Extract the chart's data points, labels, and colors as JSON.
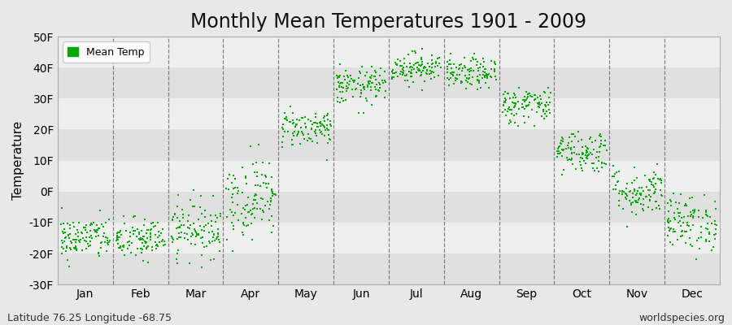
{
  "title": "Monthly Mean Temperatures 1901 - 2009",
  "ylabel": "Temperature",
  "xlabel_labels": [
    "Jan",
    "Feb",
    "Mar",
    "Apr",
    "May",
    "Jun",
    "Jul",
    "Aug",
    "Sep",
    "Oct",
    "Nov",
    "Dec"
  ],
  "yticks": [
    -30,
    -20,
    -10,
    0,
    10,
    20,
    30,
    40,
    50
  ],
  "ylim": [
    -30,
    50
  ],
  "dot_color": "#00aa00",
  "background_color": "#e8e8e8",
  "plot_bg_light": "#efefef",
  "plot_bg_dark": "#e0e0e0",
  "legend_label": "Mean Temp",
  "footer_left": "Latitude 76.25 Longitude -68.75",
  "footer_right": "worldspecies.org",
  "title_fontsize": 17,
  "axis_label_fontsize": 11,
  "tick_fontsize": 10,
  "footer_fontsize": 9,
  "monthly_means": [
    -15.0,
    -15.5,
    -12.0,
    -2.0,
    20.5,
    34.0,
    40.0,
    38.0,
    28.0,
    13.0,
    0.0,
    -10.0
  ],
  "monthly_stds": [
    3.5,
    3.5,
    4.5,
    6.5,
    3.0,
    3.0,
    2.5,
    2.5,
    3.0,
    3.5,
    4.0,
    4.5
  ],
  "n_years": 109,
  "seed": 42
}
